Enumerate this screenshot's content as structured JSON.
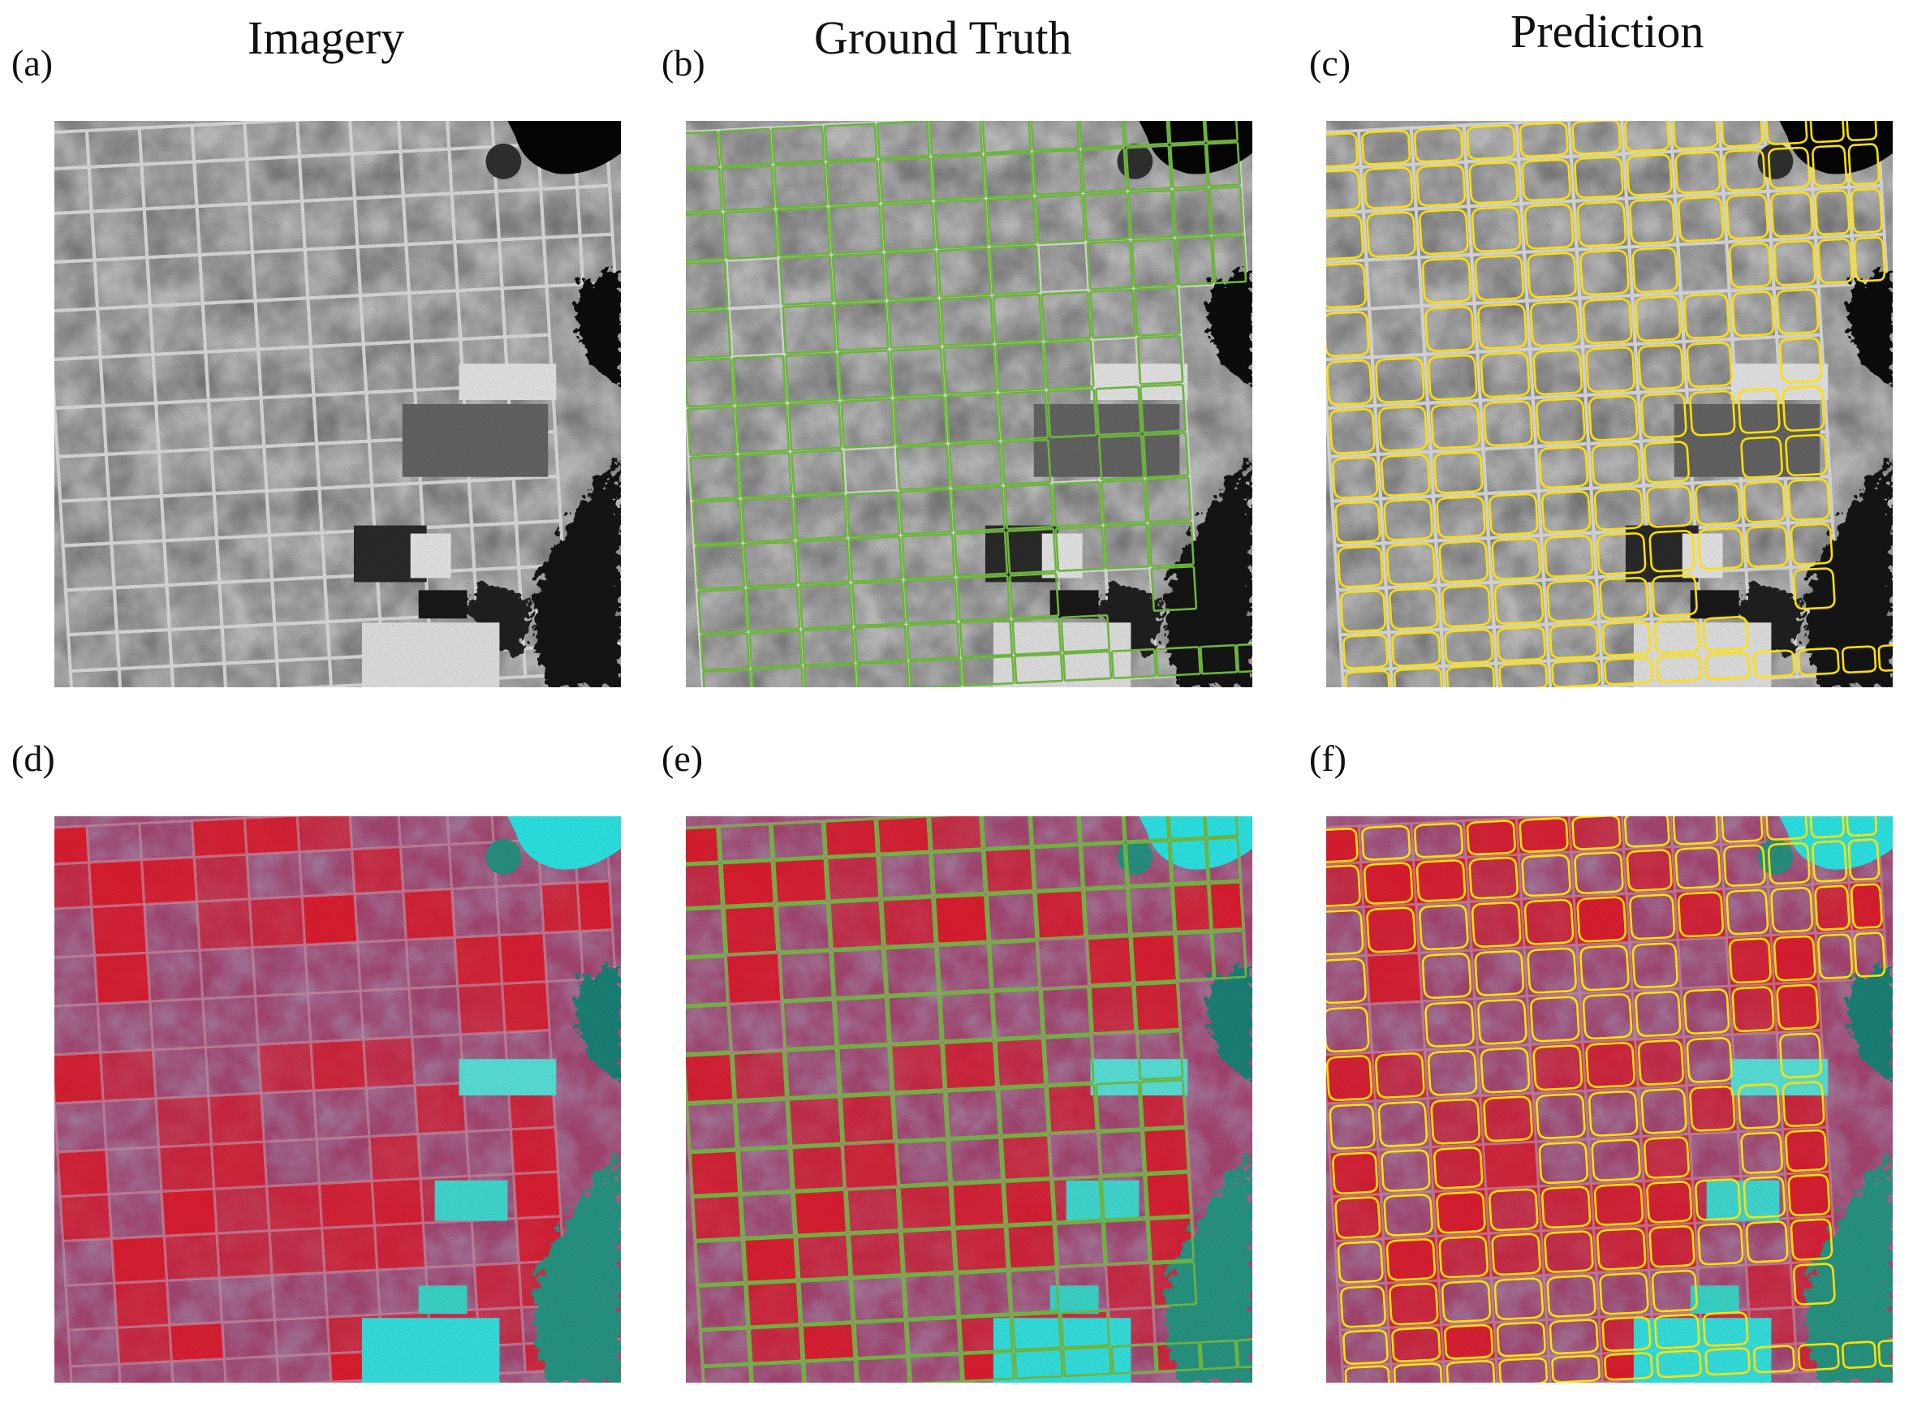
{
  "columns": {
    "imagery": "Imagery",
    "ground_truth": "Ground Truth",
    "prediction": "Prediction"
  },
  "panels": [
    {
      "label": "(a)",
      "kind": "grayscale imagery"
    },
    {
      "label": "(b)",
      "kind": "grayscale with ground-truth outlines"
    },
    {
      "label": "(c)",
      "kind": "grayscale with predicted outlines"
    },
    {
      "label": "(d)",
      "kind": "false-color imagery"
    },
    {
      "label": "(e)",
      "kind": "false-color with ground-truth outlines"
    },
    {
      "label": "(f)",
      "kind": "false-color with predicted outlines"
    }
  ],
  "colors": {
    "ground_truth_outline": "#6db33f",
    "prediction_outline": "#ffe100",
    "false_color_red": "#e8203a",
    "false_color_cyan": "#30f2f2",
    "gray_field": "#c4c4c4"
  }
}
